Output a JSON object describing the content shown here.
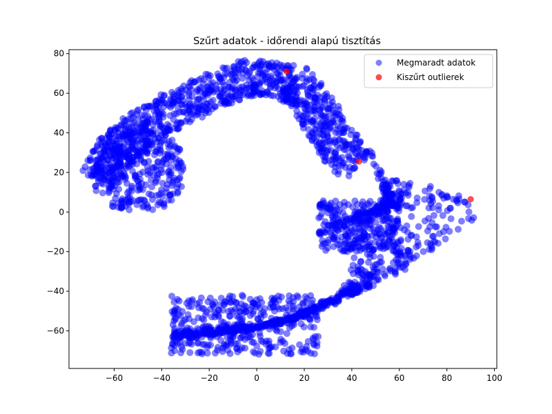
{
  "chart_data": {
    "type": "scatter",
    "title": "Szűrt adatok - időrendi alapú tisztítás",
    "xlabel": "",
    "ylabel": "",
    "xlim": [
      -79,
      101
    ],
    "ylim": [
      -79,
      82
    ],
    "xticks": [
      -60,
      -40,
      -20,
      0,
      20,
      40,
      60,
      80,
      100
    ],
    "yticks": [
      -60,
      -40,
      -20,
      0,
      20,
      40,
      60,
      80
    ],
    "xtick_labels": [
      "−60",
      "−40",
      "−20",
      "0",
      "20",
      "40",
      "60",
      "80",
      "100"
    ],
    "ytick_labels": [
      "−60",
      "−40",
      "−20",
      "0",
      "20",
      "40",
      "60",
      "80"
    ],
    "grid": false,
    "legend_position": "top-right",
    "series": [
      {
        "name": "Megmaradt adatok",
        "color": "#0000ff",
        "alpha": 0.5,
        "band_centerline": [
          [
            -69,
            18
          ],
          [
            -65,
            26
          ],
          [
            -62,
            33
          ],
          [
            -58,
            37
          ],
          [
            -53,
            42
          ],
          [
            -48,
            46
          ],
          [
            -43,
            50
          ],
          [
            -38,
            53
          ],
          [
            -33,
            56
          ],
          [
            -28,
            59
          ],
          [
            -23,
            62
          ],
          [
            -18,
            65
          ],
          [
            -13,
            67
          ],
          [
            -8,
            69
          ],
          [
            -3,
            71
          ],
          [
            2,
            71
          ],
          [
            7,
            70
          ],
          [
            12,
            69
          ],
          [
            17,
            68
          ],
          [
            22,
            62
          ],
          [
            26,
            55
          ],
          [
            30,
            48
          ],
          [
            34,
            40
          ],
          [
            38,
            34
          ],
          [
            42,
            28
          ],
          [
            45,
            25
          ]
        ],
        "band_width_upper": 6,
        "band_width_lower": 24,
        "band2_centerline": [
          [
            47,
            22
          ],
          [
            55,
            14
          ],
          [
            63,
            11
          ],
          [
            71,
            9
          ],
          [
            79,
            6
          ],
          [
            86,
            4
          ],
          [
            90,
            1
          ],
          [
            91,
            -2
          ],
          [
            87,
            -6
          ],
          [
            80,
            -11
          ],
          [
            72,
            -16
          ],
          [
            64,
            -21
          ],
          [
            56,
            -26
          ],
          [
            48,
            -31
          ],
          [
            40,
            -36
          ],
          [
            32,
            -41
          ],
          [
            24,
            -46
          ],
          [
            16,
            -50
          ],
          [
            8,
            -53
          ],
          [
            0,
            -55
          ],
          [
            -8,
            -57
          ],
          [
            -16,
            -59
          ],
          [
            -24,
            -61
          ],
          [
            -32,
            -62
          ]
        ],
        "band2_inner_edge": [
          [
            60,
            5
          ],
          [
            55,
            1
          ],
          [
            45,
            -3
          ],
          [
            32,
            -6
          ],
          [
            27,
            -4
          ],
          [
            30,
            -11
          ],
          [
            35,
            -16
          ],
          [
            38,
            -23
          ],
          [
            40,
            -30
          ],
          [
            38,
            -36
          ],
          [
            34,
            -42
          ],
          [
            26,
            -46
          ],
          [
            18,
            -51
          ],
          [
            10,
            -56
          ],
          [
            2,
            -58
          ],
          [
            -8,
            -60
          ],
          [
            -18,
            -62
          ],
          [
            -28,
            -63
          ],
          [
            -34,
            -63
          ]
        ],
        "band2_outer_edge": [
          [
            47,
            26
          ],
          [
            56,
            17
          ],
          [
            66,
            14
          ],
          [
            76,
            12
          ],
          [
            85,
            9
          ],
          [
            91,
            5
          ],
          [
            93,
            0
          ],
          [
            92,
            -4
          ],
          [
            86,
            -10
          ],
          [
            78,
            -16
          ],
          [
            70,
            -22
          ],
          [
            62,
            -28
          ],
          [
            54,
            -33
          ],
          [
            46,
            -38
          ],
          [
            38,
            -43
          ],
          [
            30,
            -47
          ],
          [
            22,
            -51
          ],
          [
            14,
            -54
          ],
          [
            6,
            -56
          ],
          [
            -2,
            -57
          ],
          [
            -10,
            -58
          ],
          [
            -18,
            -59
          ],
          [
            -26,
            -60
          ],
          [
            -34,
            -60
          ]
        ]
      },
      {
        "name": "Kiszűrt outlierek",
        "color": "#ff0000",
        "alpha": 0.7,
        "points": [
          [
            12.5,
            71
          ],
          [
            43,
            25.5
          ],
          [
            90,
            6.5
          ]
        ]
      }
    ]
  }
}
